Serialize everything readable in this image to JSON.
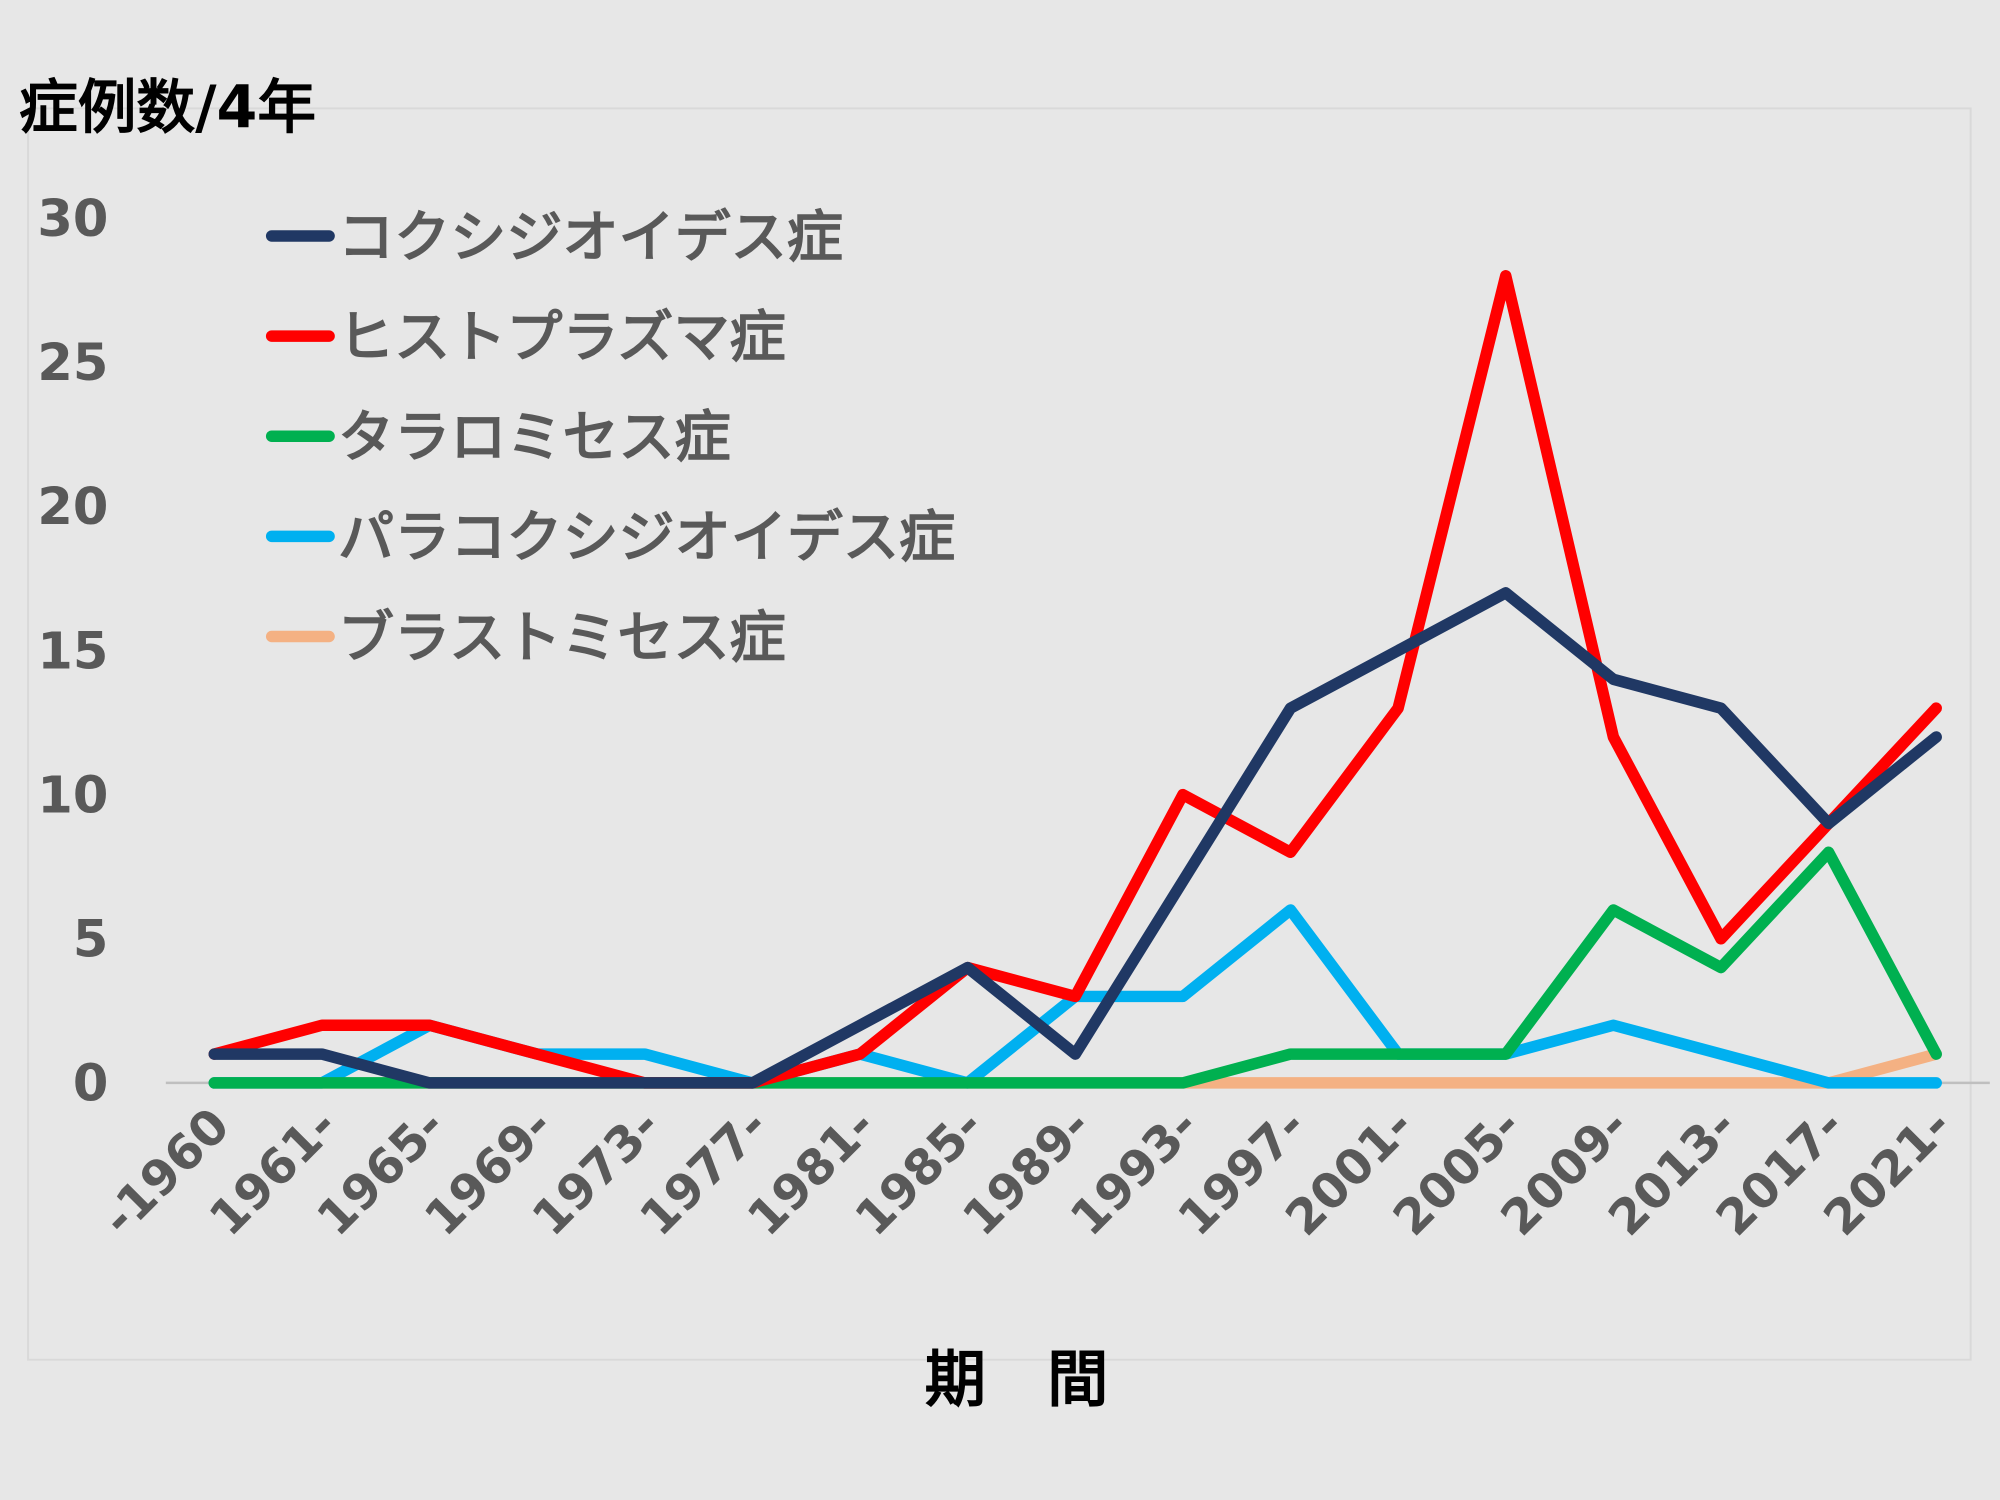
{
  "chart_data": {
    "type": "line",
    "y_label": "症例数/4年",
    "x_label": "期　間",
    "categories": [
      "-1960",
      "1961-",
      "1965-",
      "1969-",
      "1973-",
      "1977-",
      "1981-",
      "1985-",
      "1989-",
      "1993-",
      "1997-",
      "2001-",
      "2005-",
      "2009-",
      "2013-",
      "2017-",
      "2021-"
    ],
    "series": [
      {
        "name": "コクシジオイデス症",
        "color": "#203864",
        "values": [
          1,
          1,
          0,
          0,
          0,
          0,
          2,
          4,
          1,
          7,
          13,
          15,
          17,
          14,
          13,
          9,
          12
        ]
      },
      {
        "name": "ヒストプラズマ症",
        "color": "#ff0000",
        "values": [
          1,
          2,
          2,
          1,
          0,
          0,
          1,
          4,
          3,
          10,
          8,
          13,
          28,
          12,
          5,
          9,
          13
        ]
      },
      {
        "name": "タラロミセス症",
        "color": "#00b050",
        "values": [
          0,
          0,
          0,
          0,
          0,
          0,
          0,
          0,
          0,
          0,
          1,
          1,
          1,
          6,
          4,
          8,
          1
        ]
      },
      {
        "name": "パラコクシジオイデス症",
        "color": "#00b0f0",
        "values": [
          0,
          0,
          2,
          1,
          1,
          0,
          1,
          0,
          3,
          3,
          6,
          1,
          1,
          2,
          1,
          0,
          0
        ]
      },
      {
        "name": "ブラストミセス症",
        "color": "#f4b183",
        "values": [
          0,
          0,
          0,
          0,
          0,
          0,
          0,
          0,
          0,
          0,
          0,
          0,
          0,
          0,
          0,
          0,
          1
        ]
      }
    ],
    "ylim": [
      0,
      30
    ],
    "yticks": [
      0,
      5,
      10,
      15,
      20,
      25,
      30
    ],
    "legend": "upper left"
  }
}
